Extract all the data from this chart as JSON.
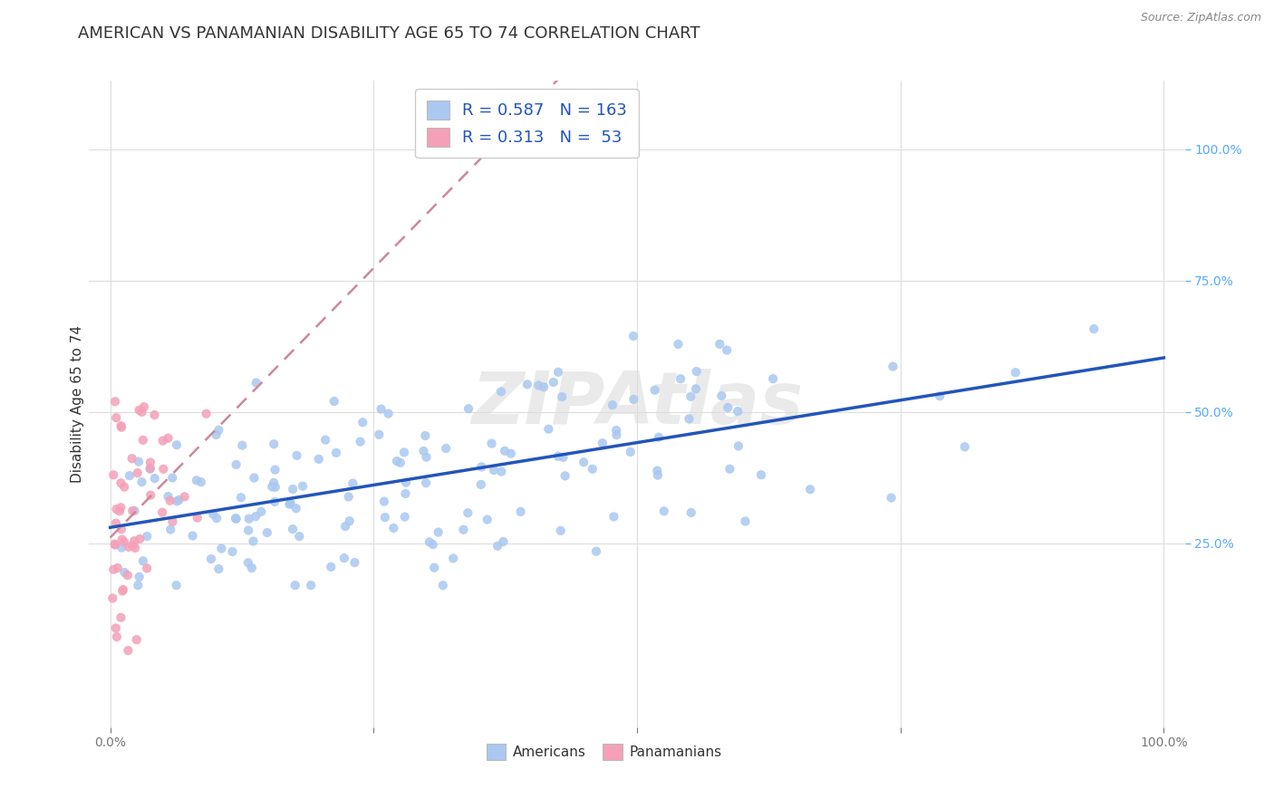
{
  "title": "AMERICAN VS PANAMANIAN DISABILITY AGE 65 TO 74 CORRELATION CHART",
  "source": "Source: ZipAtlas.com",
  "ylabel": "Disability Age 65 to 74",
  "xlim": [
    -0.02,
    1.02
  ],
  "ylim": [
    -0.1,
    1.13
  ],
  "x_ticks": [
    0.0,
    0.25,
    0.5,
    0.75,
    1.0
  ],
  "x_tick_labels": [
    "0.0%",
    "",
    "",
    "",
    "100.0%"
  ],
  "y_ticks": [
    0.25,
    0.5,
    0.75,
    1.0
  ],
  "y_tick_labels": [
    "25.0%",
    "50.0%",
    "75.0%",
    "100.0%"
  ],
  "american_R": 0.587,
  "american_N": 163,
  "panamanian_R": 0.313,
  "panamanian_N": 53,
  "american_color": "#aac8f0",
  "panamanian_color": "#f4a0b8",
  "american_line_color": "#2255bb",
  "panamanian_line_color": "#cc8899",
  "background_color": "#ffffff",
  "grid_color": "#dddddd",
  "title_fontsize": 13,
  "axis_label_fontsize": 11,
  "tick_fontsize": 10,
  "right_tick_color": "#55aaff",
  "watermark_color": "#dddddd",
  "watermark_alpha": 0.6
}
